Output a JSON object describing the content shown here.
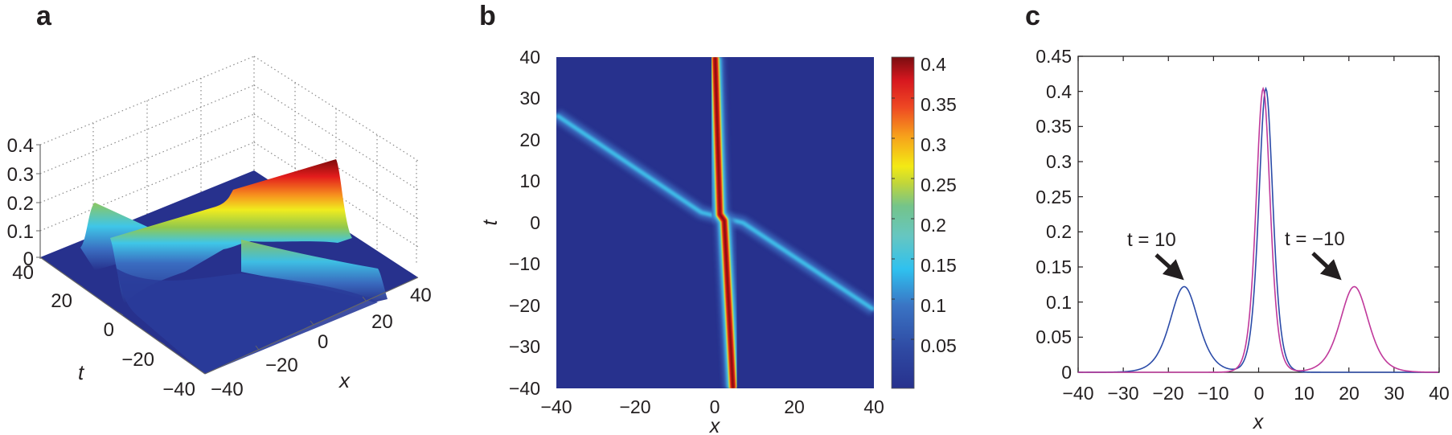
{
  "figure": {
    "panel_labels": [
      "a",
      "b",
      "c"
    ]
  },
  "chart_data": [
    {
      "panel": "a",
      "type": "surface3d",
      "title": "",
      "xlabel": "x",
      "ylabel": "t",
      "zlabel": "",
      "x_ticks": [
        "-40",
        "-20",
        "0",
        "20",
        "40"
      ],
      "t_ticks": [
        "-40",
        "-20",
        "0",
        "20",
        "40"
      ],
      "z_ticks": [
        "0",
        "0.1",
        "0.2",
        "0.3",
        "0.4"
      ],
      "xlim": [
        -40,
        40
      ],
      "tlim": [
        -40,
        40
      ],
      "zlim": [
        0,
        0.4
      ],
      "grid": true,
      "description": "Two solitons: large (peak ~0.4) nearly stationary soliton and small (peak ~0.12-0.2) soliton travelling across it, colored with jet colormap",
      "solitons": [
        {
          "name": "large",
          "peak": 0.4,
          "x_at_t_min": 4,
          "x_at_t_max": 0
        },
        {
          "name": "small",
          "peak": 0.12,
          "x_at_t_min": 40,
          "x_at_t_max": -40
        }
      ]
    },
    {
      "panel": "b",
      "type": "heatmap",
      "title": "",
      "xlabel": "x",
      "ylabel": "t",
      "xlim": [
        -40,
        40
      ],
      "ylim": [
        -40,
        40
      ],
      "x_ticks": [
        "-40",
        "-20",
        "0",
        "20",
        "40"
      ],
      "y_ticks": [
        "40",
        "30",
        "20",
        "10",
        "0",
        "-10",
        "-20",
        "-30",
        "-40"
      ],
      "colorbar": {
        "ticks": [
          "0.4",
          "0.35",
          "0.3",
          "0.25",
          "0.2",
          "0.15",
          "0.1",
          "0.05"
        ],
        "range": [
          0,
          0.41
        ],
        "colormap": "jet"
      },
      "tracks": [
        {
          "name": "large-soliton",
          "peak": 0.4,
          "points": [
            [
              0,
              40
            ],
            [
              1.2,
              2
            ],
            [
              2.3,
              0.5
            ],
            [
              4.5,
              -40
            ]
          ]
        },
        {
          "name": "small-soliton",
          "peak": 0.12,
          "points": [
            [
              -40,
              26
            ],
            [
              -3.5,
              2.5
            ],
            [
              7,
              0
            ],
            [
              40,
              -21
            ]
          ]
        }
      ]
    },
    {
      "panel": "c",
      "type": "line",
      "title": "",
      "xlabel": "x",
      "ylabel": "",
      "xlim": [
        -40,
        40
      ],
      "ylim": [
        0,
        0.45
      ],
      "x_ticks": [
        "-40",
        "-30",
        "-20",
        "-10",
        "0",
        "10",
        "20",
        "30",
        "40"
      ],
      "y_ticks": [
        "0",
        "0.05",
        "0.1",
        "0.15",
        "0.2",
        "0.25",
        "0.3",
        "0.35",
        "0.4",
        "0.45"
      ],
      "grid": false,
      "series": [
        {
          "name": "t = 10",
          "color": "#2b4ba8",
          "peaks": [
            {
              "center": -16.5,
              "height": 0.122,
              "width": 4.2
            },
            {
              "center": 1.6,
              "height": 0.404,
              "width": 2.1
            }
          ]
        },
        {
          "name": "t = −10",
          "color": "#c0399b",
          "peaks": [
            {
              "center": 1.0,
              "height": 0.404,
              "width": 2.1
            },
            {
              "center": 21.2,
              "height": 0.122,
              "width": 4.2
            }
          ]
        }
      ],
      "annotations": [
        {
          "text": "t = 10",
          "target_x": -15.7,
          "target_y": 0.122
        },
        {
          "text": "t = −10",
          "target_x": 21.2,
          "target_y": 0.122
        }
      ]
    }
  ]
}
